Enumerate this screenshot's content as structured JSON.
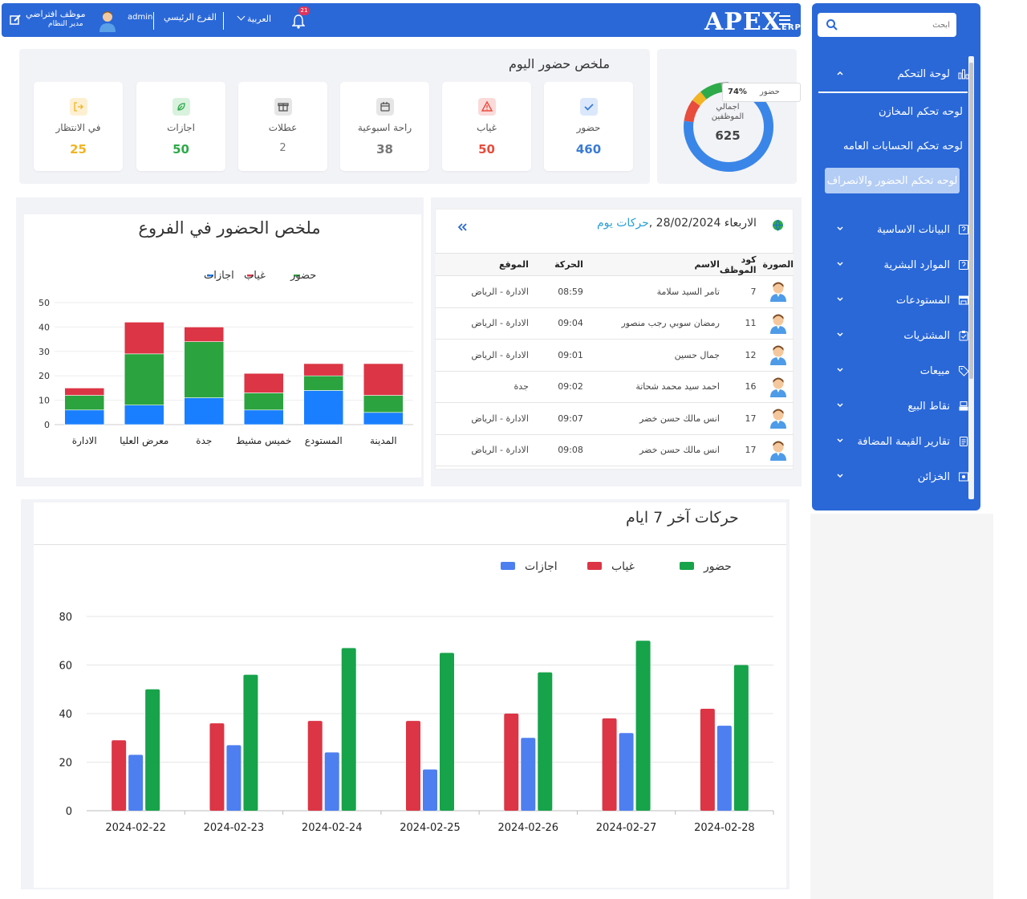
{
  "header": {
    "logo": "APEX",
    "logo_sub": "ERP",
    "notifications_count": "21",
    "language": "العربية",
    "branch": "الفرع الرئيسي",
    "username": "admin",
    "user_display_name": "موظف افتراضي",
    "user_role": "مدير النظام"
  },
  "sidebar": {
    "search_placeholder": "ابحث",
    "dashboard_label": "لوحة التحكم",
    "dashboard_items": [
      "لوحه تحكم المخازن",
      "لوحه تحكم الحسابات العامه",
      "لوحه تحكم الحضور والانصراف"
    ],
    "menu": [
      "البيانات الاساسية",
      "الموارد البشرية",
      "المستودعات",
      "المشتريات",
      "مبيعات",
      "نقاط البيع",
      "تقارير القيمة المضافة",
      "الخزائن"
    ]
  },
  "today": {
    "title": "ملخص حضور اليوم",
    "cards": [
      {
        "label": "حضور",
        "value": "460",
        "color": "#3a7bd5"
      },
      {
        "label": "غياب",
        "value": "50",
        "color": "#e74c3c"
      },
      {
        "label": "راحة اسبوعية",
        "value": "38",
        "color": "#777777"
      },
      {
        "label": "عطلات",
        "value": "2",
        "color": "#777777"
      },
      {
        "label": "اجازات",
        "value": "50",
        "color": "#2eaa4a"
      },
      {
        "label": "في الانتظار",
        "value": "25",
        "color": "#f1b424"
      }
    ],
    "donut": {
      "label_line1": "اجمالي",
      "label_line2": "الموظفين",
      "total": "625",
      "tooltip_percent": "74%",
      "tooltip_label": "حضور"
    }
  },
  "branches_chart": {
    "title": "ملخص الحضور في الفروع",
    "legend": [
      "حضور",
      "غياب",
      "اجازات"
    ]
  },
  "movements": {
    "title_prefix": "حركات يوم",
    "title_date": "الاربعاء 28/02/2024",
    "columns": [
      "الصورة",
      "كود الموظف",
      "الاسم",
      "الحركة",
      "الموقع"
    ],
    "rows": [
      {
        "code": "7",
        "name": "تامر السيد سلامة",
        "time": "08:59",
        "location": "الادارة - الرياض"
      },
      {
        "code": "11",
        "name": "رمضان سوبي رجب منصور",
        "time": "09:04",
        "location": "الادارة - الرياض"
      },
      {
        "code": "12",
        "name": "جمال حسين",
        "time": "09:01",
        "location": "الادارة - الرياض"
      },
      {
        "code": "16",
        "name": "احمد سيد محمد شحاتة",
        "time": "09:02",
        "location": "جدة"
      },
      {
        "code": "17",
        "name": "انس مالك حسن خضر",
        "time": "09:07",
        "location": "الادارة - الرياض"
      },
      {
        "code": "17",
        "name": "انس مالك حسن خضر",
        "time": "09:08",
        "location": "الادارة - الرياض"
      }
    ]
  },
  "week_chart": {
    "title": "حركات آخر 7 ايام",
    "legend": [
      "حضور",
      "غياب",
      "اجازات"
    ]
  },
  "chart_data": [
    {
      "type": "bar",
      "stacked": true,
      "title": "ملخص الحضور في الفروع",
      "categories": [
        "الادارة",
        "معرض العليا",
        "جدة",
        "خميس مشيط",
        "المستودع",
        "المدينة"
      ],
      "series": [
        {
          "name": "اجازات",
          "color": "#1a7fff",
          "values": [
            6,
            8,
            11,
            6,
            14,
            5
          ]
        },
        {
          "name": "حضور",
          "color": "#2ba33e",
          "values": [
            6,
            21,
            23,
            7,
            6,
            7
          ]
        },
        {
          "name": "غياب",
          "color": "#dc3545",
          "values": [
            3,
            13,
            6,
            8,
            5,
            13
          ]
        }
      ],
      "ylim": [
        0,
        50
      ],
      "yticks": [
        0,
        10,
        20,
        30,
        40,
        50
      ],
      "legend_position": "top"
    },
    {
      "type": "bar",
      "title": "حركات آخر 7 ايام",
      "categories": [
        "2024-02-22",
        "2024-02-23",
        "2024-02-24",
        "2024-02-25",
        "2024-02-26",
        "2024-02-27",
        "2024-02-28"
      ],
      "series": [
        {
          "name": "غياب",
          "color": "#dc3545",
          "values": [
            29,
            36,
            37,
            37,
            40,
            38,
            42
          ]
        },
        {
          "name": "اجازات",
          "color": "#4d7ff0",
          "values": [
            23,
            27,
            24,
            17,
            30,
            32,
            35
          ]
        },
        {
          "name": "حضور",
          "color": "#17a34a",
          "values": [
            50,
            56,
            67,
            65,
            57,
            70,
            60
          ]
        }
      ],
      "ylim": [
        0,
        80
      ],
      "yticks": [
        0,
        20,
        40,
        60,
        80
      ],
      "grid": true,
      "legend_position": "top-right"
    }
  ]
}
